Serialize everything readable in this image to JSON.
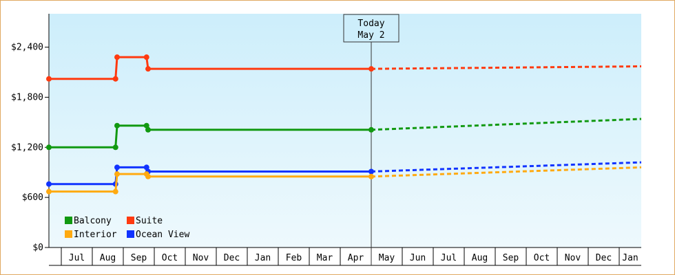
{
  "chart_data": {
    "type": "line",
    "title": "",
    "xlabel": "",
    "ylabel": "",
    "ylim": [
      0,
      2800
    ],
    "y_ticks": [
      0,
      600,
      1200,
      1800,
      2400
    ],
    "y_tick_labels": [
      "$0",
      "$600",
      "$1,200",
      "$1,800",
      "$2,400"
    ],
    "x_tick_labels": [
      "Jul",
      "Aug",
      "Sep",
      "Oct",
      "Nov",
      "Dec",
      "Jan",
      "Feb",
      "Mar",
      "Apr",
      "May",
      "Jun",
      "Jul",
      "Aug",
      "Sep",
      "Oct",
      "Nov",
      "Dec",
      "Jan"
    ],
    "x_unit": "months from start of Jul",
    "xlim": [
      -0.4,
      19.0
    ],
    "today_x": 10.0,
    "annotation": {
      "line1": "Today",
      "line2": "May 2"
    },
    "grid": false,
    "legend_position": "bottom-left",
    "background_gradient": [
      "#cdeefb",
      "#eef9fd"
    ],
    "series": [
      {
        "name": "Suite",
        "color": "#ff3a10",
        "history": [
          [
            -0.4,
            2020
          ],
          [
            1.75,
            2020
          ],
          [
            1.8,
            2280
          ],
          [
            2.75,
            2280
          ],
          [
            2.8,
            2140
          ],
          [
            10.0,
            2140
          ]
        ],
        "markers": [
          [
            -0.4,
            2020
          ],
          [
            1.75,
            2020
          ],
          [
            1.8,
            2280
          ],
          [
            2.75,
            2280
          ],
          [
            2.8,
            2140
          ],
          [
            10.0,
            2140
          ]
        ],
        "forecast": [
          [
            10.0,
            2140
          ],
          [
            19.0,
            2170
          ]
        ]
      },
      {
        "name": "Balcony",
        "color": "#119911",
        "history": [
          [
            -0.4,
            1200
          ],
          [
            1.75,
            1200
          ],
          [
            1.8,
            1460
          ],
          [
            2.75,
            1460
          ],
          [
            2.8,
            1410
          ],
          [
            10.0,
            1410
          ]
        ],
        "markers": [
          [
            -0.4,
            1200
          ],
          [
            1.75,
            1200
          ],
          [
            1.8,
            1460
          ],
          [
            2.75,
            1460
          ],
          [
            2.8,
            1410
          ],
          [
            10.0,
            1410
          ]
        ],
        "forecast": [
          [
            10.0,
            1410
          ],
          [
            19.0,
            1540
          ]
        ]
      },
      {
        "name": "Ocean View",
        "color": "#1133ff",
        "history": [
          [
            -0.4,
            760
          ],
          [
            1.75,
            760
          ],
          [
            1.8,
            960
          ],
          [
            2.75,
            960
          ],
          [
            2.8,
            910
          ],
          [
            10.0,
            910
          ]
        ],
        "markers": [
          [
            -0.4,
            760
          ],
          [
            1.75,
            760
          ],
          [
            1.8,
            960
          ],
          [
            2.75,
            960
          ],
          [
            2.8,
            910
          ],
          [
            10.0,
            910
          ]
        ],
        "forecast": [
          [
            10.0,
            910
          ],
          [
            19.0,
            1020
          ]
        ]
      },
      {
        "name": "Interior",
        "color": "#ffaa11",
        "history": [
          [
            -0.4,
            670
          ],
          [
            1.75,
            670
          ],
          [
            1.8,
            880
          ],
          [
            2.75,
            880
          ],
          [
            2.8,
            850
          ],
          [
            10.0,
            850
          ]
        ],
        "markers": [
          [
            -0.4,
            670
          ],
          [
            1.75,
            670
          ],
          [
            1.8,
            880
          ],
          [
            2.75,
            880
          ],
          [
            2.8,
            850
          ],
          [
            10.0,
            850
          ]
        ],
        "forecast": [
          [
            10.0,
            850
          ],
          [
            19.0,
            960
          ]
        ]
      }
    ],
    "legend_order": [
      "Balcony",
      "Suite",
      "Interior",
      "Ocean View"
    ]
  }
}
